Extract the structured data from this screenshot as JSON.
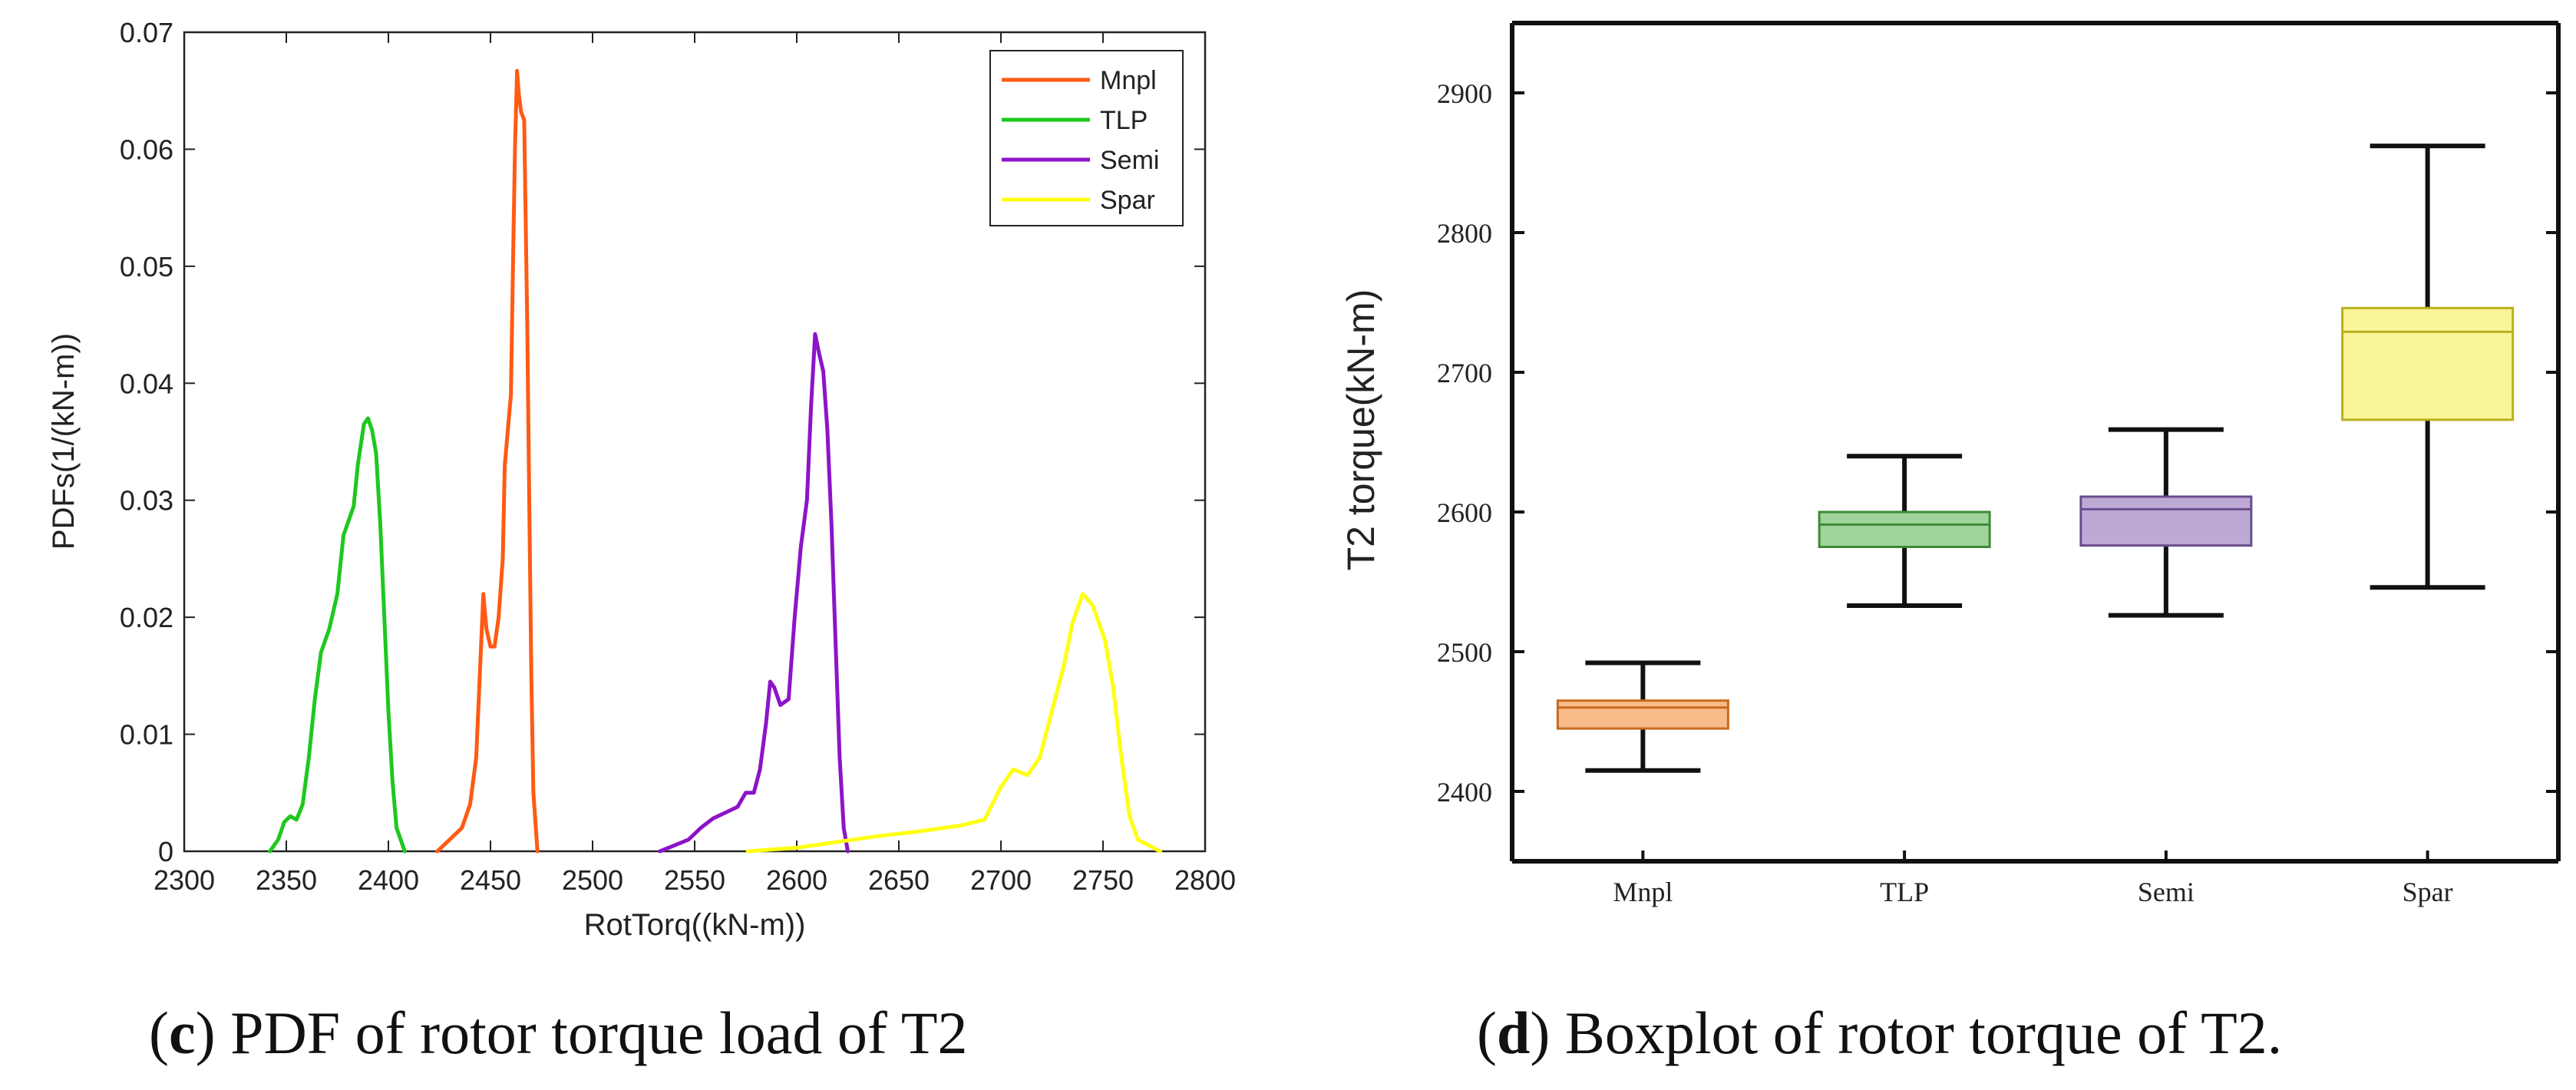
{
  "captions": {
    "left_letter": "c",
    "left_text": ") PDF of rotor torque load of T2",
    "right_letter": "d",
    "right_text": ") Boxplot of rotor torque of T2."
  },
  "chart_data": [
    {
      "type": "line",
      "title": "",
      "xlabel": "RotTorq((kN-m))",
      "ylabel": "PDFs(1/(kN-m))",
      "xlim": [
        2300,
        2800
      ],
      "ylim": [
        0,
        0.07
      ],
      "x_ticks": [
        2300,
        2350,
        2400,
        2450,
        2500,
        2550,
        2600,
        2650,
        2700,
        2750,
        2800
      ],
      "y_ticks": [
        0,
        0.01,
        0.02,
        0.03,
        0.04,
        0.05,
        0.06,
        0.07
      ],
      "y_tick_labels": [
        "0",
        "0.01",
        "0.02",
        "0.03",
        "0.04",
        "0.05",
        "0.06",
        "0.07"
      ],
      "legend_position": "top-right",
      "series": [
        {
          "name": "Mnpl",
          "color": "#ff5a14",
          "points": [
            [
              2424,
              0
            ],
            [
              2430,
              0.001
            ],
            [
              2436,
              0.002
            ],
            [
              2440,
              0.004
            ],
            [
              2443,
              0.008
            ],
            [
              2445,
              0.016
            ],
            [
              2446.5,
              0.022
            ],
            [
              2448,
              0.019
            ],
            [
              2450,
              0.0175
            ],
            [
              2452,
              0.0175
            ],
            [
              2454,
              0.02
            ],
            [
              2456,
              0.025
            ],
            [
              2457,
              0.033
            ],
            [
              2458.5,
              0.036
            ],
            [
              2460,
              0.039
            ],
            [
              2461,
              0.05
            ],
            [
              2462,
              0.06
            ],
            [
              2463,
              0.0667
            ],
            [
              2464,
              0.0645
            ],
            [
              2465,
              0.0632
            ],
            [
              2466.5,
              0.0625
            ],
            [
              2468,
              0.045
            ],
            [
              2469,
              0.03
            ],
            [
              2470,
              0.015
            ],
            [
              2471,
              0.005
            ],
            [
              2473,
              0
            ]
          ]
        },
        {
          "name": "TLP",
          "color": "#1ec81e",
          "points": [
            [
              2342,
              0
            ],
            [
              2346,
              0.001
            ],
            [
              2349,
              0.0025
            ],
            [
              2352,
              0.003
            ],
            [
              2355,
              0.0027
            ],
            [
              2358,
              0.004
            ],
            [
              2361,
              0.008
            ],
            [
              2364,
              0.013
            ],
            [
              2367,
              0.017
            ],
            [
              2371,
              0.019
            ],
            [
              2375,
              0.022
            ],
            [
              2378,
              0.027
            ],
            [
              2381,
              0.0285
            ],
            [
              2383,
              0.0295
            ],
            [
              2385,
              0.033
            ],
            [
              2388,
              0.0365
            ],
            [
              2390,
              0.037
            ],
            [
              2392,
              0.036
            ],
            [
              2394,
              0.034
            ],
            [
              2396,
              0.028
            ],
            [
              2398,
              0.02
            ],
            [
              2400,
              0.012
            ],
            [
              2402,
              0.006
            ],
            [
              2404,
              0.002
            ],
            [
              2408,
              0
            ]
          ]
        },
        {
          "name": "Semi",
          "color": "#8c14c8",
          "points": [
            [
              2533,
              0
            ],
            [
              2540,
              0.0005
            ],
            [
              2547,
              0.001
            ],
            [
              2553,
              0.002
            ],
            [
              2559,
              0.0028
            ],
            [
              2565,
              0.0033
            ],
            [
              2571,
              0.0038
            ],
            [
              2575,
              0.005
            ],
            [
              2579,
              0.005
            ],
            [
              2582,
              0.007
            ],
            [
              2585,
              0.011
            ],
            [
              2587,
              0.0145
            ],
            [
              2589,
              0.014
            ],
            [
              2592,
              0.0125
            ],
            [
              2596,
              0.013
            ],
            [
              2599,
              0.02
            ],
            [
              2602,
              0.026
            ],
            [
              2605,
              0.03
            ],
            [
              2607,
              0.038
            ],
            [
              2609,
              0.0442
            ],
            [
              2611,
              0.0425
            ],
            [
              2613,
              0.041
            ],
            [
              2615,
              0.036
            ],
            [
              2617,
              0.028
            ],
            [
              2619,
              0.018
            ],
            [
              2621,
              0.008
            ],
            [
              2623,
              0.002
            ],
            [
              2625,
              0
            ]
          ]
        },
        {
          "name": "Spar",
          "color": "#ffff14",
          "points": [
            [
              2576,
              0
            ],
            [
              2600,
              0.0003
            ],
            [
              2620,
              0.0008
            ],
            [
              2640,
              0.0013
            ],
            [
              2660,
              0.0017
            ],
            [
              2680,
              0.0022
            ],
            [
              2692,
              0.0027
            ],
            [
              2700,
              0.0055
            ],
            [
              2706,
              0.007
            ],
            [
              2713,
              0.0065
            ],
            [
              2719,
              0.008
            ],
            [
              2725,
              0.012
            ],
            [
              2731,
              0.016
            ],
            [
              2735,
              0.0195
            ],
            [
              2740,
              0.022
            ],
            [
              2745,
              0.021
            ],
            [
              2751,
              0.018
            ],
            [
              2755,
              0.014
            ],
            [
              2759,
              0.008
            ],
            [
              2763,
              0.003
            ],
            [
              2767,
              0.001
            ],
            [
              2778,
              0
            ]
          ]
        }
      ]
    },
    {
      "type": "boxplot",
      "title": "",
      "ylabel": "T2 torque(kN-m)",
      "xlabel": "",
      "ylim": [
        2350,
        2950
      ],
      "y_ticks": [
        2400,
        2500,
        2600,
        2700,
        2800,
        2900
      ],
      "categories": [
        "Mnpl",
        "TLP",
        "Semi",
        "Spar"
      ],
      "boxes": [
        {
          "name": "Mnpl",
          "whisker_low": 2415,
          "q1": 2445,
          "median": 2460,
          "q3": 2465,
          "whisker_high": 2492,
          "fill": "#f8bb8a",
          "stroke": "#c86a1c"
        },
        {
          "name": "TLP",
          "whisker_low": 2533,
          "q1": 2575,
          "median": 2591,
          "q3": 2600,
          "whisker_high": 2640,
          "fill": "#9fd49a",
          "stroke": "#3c8a38"
        },
        {
          "name": "Semi",
          "whisker_low": 2526,
          "q1": 2576,
          "median": 2602,
          "q3": 2611,
          "whisker_high": 2659,
          "fill": "#bdaad4",
          "stroke": "#6a4c8c"
        },
        {
          "name": "Spar",
          "whisker_low": 2546,
          "q1": 2666,
          "median": 2729,
          "q3": 2746,
          "whisker_high": 2862,
          "fill": "#fbf59a",
          "stroke": "#b8b01c"
        }
      ]
    }
  ]
}
